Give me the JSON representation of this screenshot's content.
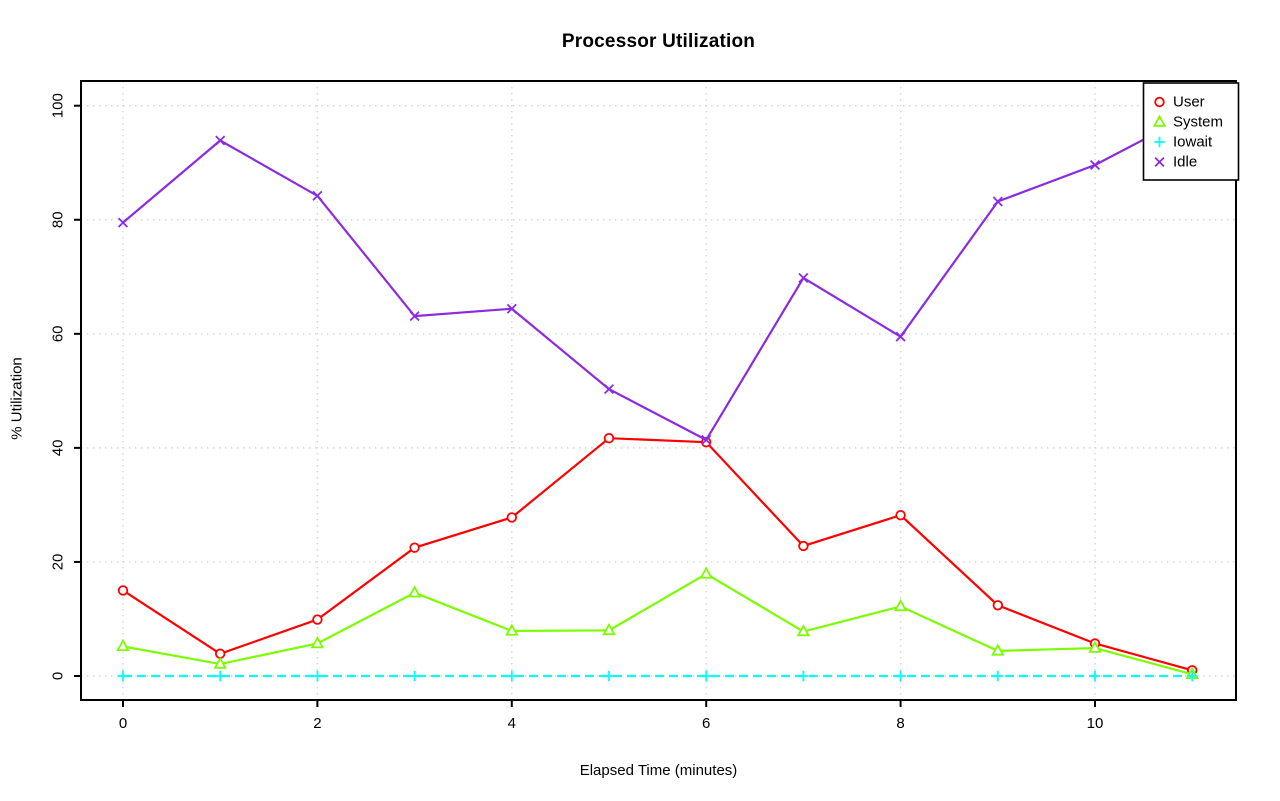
{
  "chart_data": {
    "type": "line",
    "title": "Processor Utilization",
    "xlabel": "Elapsed Time (minutes)",
    "ylabel": "% Utilization",
    "x": [
      0,
      1,
      2,
      3,
      4,
      5,
      6,
      7,
      8,
      9,
      10,
      11
    ],
    "xlim": [
      0,
      11
    ],
    "ylim": [
      0,
      100
    ],
    "x_ticks": [
      0,
      2,
      4,
      6,
      8,
      10
    ],
    "y_ticks": [
      0,
      20,
      40,
      60,
      80,
      100
    ],
    "grid": "dotted light gray at every labeled tick",
    "legend_position": "top-right",
    "frame_color": "#000000",
    "grid_color": "#d6d6d6",
    "series": [
      {
        "name": "User",
        "color": "#ff0000",
        "marker": "circle",
        "line_style": "solid",
        "values": [
          15,
          3.9,
          9.9,
          22.5,
          27.8,
          41.7,
          41,
          22.8,
          28.2,
          12.4,
          5.7,
          1
        ]
      },
      {
        "name": "System",
        "color": "#7cfc00",
        "marker": "triangle",
        "line_style": "solid",
        "values": [
          5.2,
          2.1,
          5.7,
          14.6,
          7.9,
          8,
          17.9,
          7.8,
          12.2,
          4.4,
          4.9,
          0.3
        ]
      },
      {
        "name": "Iowait",
        "color": "#00ffff",
        "marker": "plus",
        "line_style": "dashed",
        "values": [
          0,
          0,
          0,
          0,
          0,
          0,
          0,
          0,
          0,
          0,
          0,
          0
        ]
      },
      {
        "name": "Idle",
        "color": "#8a2be2",
        "marker": "x",
        "line_style": "solid",
        "values": [
          79.5,
          93.9,
          84.2,
          63.1,
          64.4,
          50.3,
          41.4,
          69.8,
          59.5,
          83.2,
          89.6,
          98.5
        ]
      }
    ]
  }
}
